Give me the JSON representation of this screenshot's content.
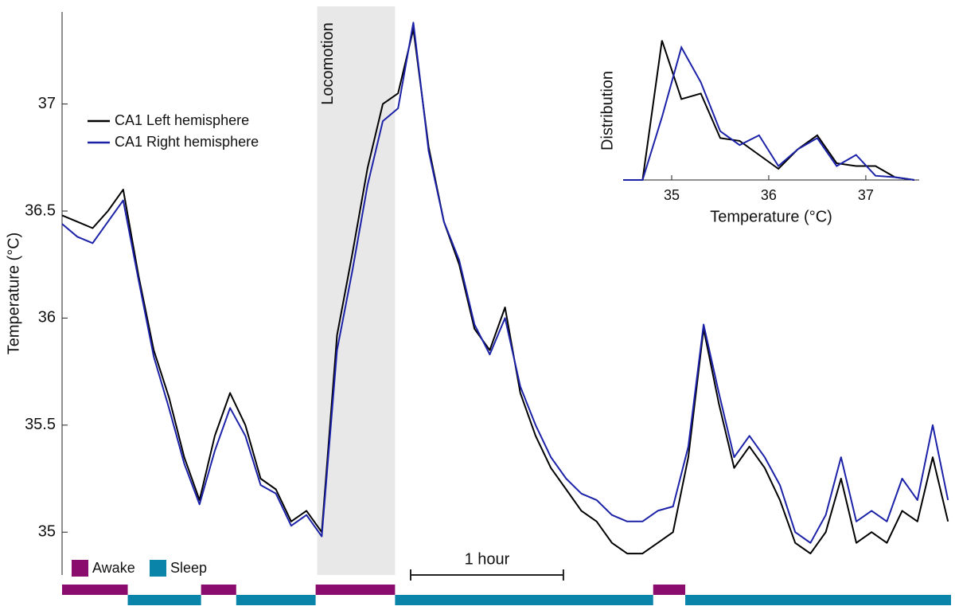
{
  "chart_data": [
    {
      "type": "line",
      "y_label": "Temperature (°C)",
      "ylim": [
        34.8,
        37.43
      ],
      "yticks": [
        35,
        35.5,
        36,
        36.5,
        37
      ],
      "xlim": [
        0,
        5.82
      ],
      "x": [
        0,
        0.1,
        0.2,
        0.3,
        0.4,
        0.5,
        0.6,
        0.7,
        0.8,
        0.9,
        1.0,
        1.1,
        1.2,
        1.3,
        1.4,
        1.5,
        1.6,
        1.7,
        1.8,
        1.9,
        2.0,
        2.1,
        2.2,
        2.3,
        2.4,
        2.5,
        2.6,
        2.7,
        2.8,
        2.9,
        3.0,
        3.1,
        3.2,
        3.3,
        3.4,
        3.5,
        3.6,
        3.7,
        3.8,
        3.9,
        4.0,
        4.1,
        4.2,
        4.3,
        4.4,
        4.5,
        4.6,
        4.7,
        4.8,
        4.9,
        5.0,
        5.1,
        5.2,
        5.3,
        5.4,
        5.5,
        5.6,
        5.7,
        5.8
      ],
      "series": [
        {
          "name": "CA1 Left hemisphere",
          "color": "#000000",
          "values": [
            36.48,
            36.45,
            36.42,
            36.5,
            36.6,
            36.2,
            35.85,
            35.63,
            35.35,
            35.15,
            35.45,
            35.65,
            35.5,
            35.25,
            35.2,
            35.05,
            35.1,
            35.0,
            35.92,
            36.3,
            36.7,
            37.0,
            37.05,
            37.35,
            36.8,
            36.45,
            36.25,
            35.95,
            35.85,
            36.05,
            35.65,
            35.45,
            35.3,
            35.2,
            35.1,
            35.05,
            34.95,
            34.9,
            34.9,
            34.95,
            35.0,
            35.35,
            35.95,
            35.6,
            35.3,
            35.4,
            35.3,
            35.15,
            34.95,
            34.9,
            35.0,
            35.25,
            34.95,
            35.0,
            34.95,
            35.1,
            35.05,
            35.35,
            35.05
          ]
        },
        {
          "name": "CA1 Right hemisphere",
          "color": "#1c22a8",
          "values": [
            36.44,
            36.38,
            36.35,
            36.45,
            36.55,
            36.18,
            35.82,
            35.58,
            35.32,
            35.13,
            35.38,
            35.58,
            35.45,
            35.22,
            35.18,
            35.03,
            35.08,
            34.98,
            35.85,
            36.22,
            36.62,
            36.92,
            36.98,
            37.38,
            36.78,
            36.45,
            36.27,
            35.97,
            35.83,
            36.0,
            35.68,
            35.5,
            35.35,
            35.25,
            35.18,
            35.15,
            35.08,
            35.05,
            35.05,
            35.1,
            35.12,
            35.4,
            35.97,
            35.65,
            35.35,
            35.45,
            35.35,
            35.22,
            35.0,
            34.95,
            35.08,
            35.35,
            35.05,
            35.1,
            35.05,
            35.25,
            35.15,
            35.5,
            35.15
          ]
        }
      ],
      "legend": "upper left",
      "shaded_region": {
        "label": "Locomotion",
        "start": 1.67,
        "end": 2.18,
        "color": "#e8e8e8"
      },
      "scale_bar": {
        "label": "1 hour",
        "length": 1
      },
      "state_legend": [
        {
          "name": "Awake",
          "color": "#8a0d6e"
        },
        {
          "name": "Sleep",
          "color": "#0b84aa"
        }
      ],
      "states": [
        {
          "state": 0,
          "start": 0,
          "end": 0.43
        },
        {
          "state": 1,
          "start": 0.43,
          "end": 0.91
        },
        {
          "state": 0,
          "start": 0.91,
          "end": 1.14
        },
        {
          "state": 1,
          "start": 1.14,
          "end": 1.66
        },
        {
          "state": 0,
          "start": 1.66,
          "end": 2.18
        },
        {
          "state": 1,
          "start": 2.18,
          "end": 3.87
        },
        {
          "state": 0,
          "start": 3.87,
          "end": 4.08
        },
        {
          "state": 1,
          "start": 4.08,
          "end": 5.82
        }
      ]
    },
    {
      "type": "line",
      "x_label": "Temperature (°C)",
      "y_label": "Distribution",
      "xlim": [
        34.5,
        37.55
      ],
      "xticks": [
        35,
        36,
        37
      ],
      "ylim": [
        0,
        1.05
      ],
      "x": [
        34.5,
        34.7,
        34.9,
        35.1,
        35.3,
        35.5,
        35.7,
        35.9,
        36.1,
        36.3,
        36.5,
        36.7,
        36.9,
        37.1,
        37.3,
        37.5
      ],
      "series": [
        {
          "color": "#000000",
          "values": [
            0,
            0,
            1.0,
            0.58,
            0.62,
            0.3,
            0.28,
            0.18,
            0.08,
            0.22,
            0.32,
            0.12,
            0.1,
            0.1,
            0.02,
            0
          ]
        },
        {
          "color": "#1c22a8",
          "values": [
            0,
            0,
            0.45,
            0.95,
            0.7,
            0.35,
            0.25,
            0.32,
            0.1,
            0.22,
            0.3,
            0.1,
            0.18,
            0.03,
            0.02,
            0
          ]
        }
      ]
    }
  ]
}
